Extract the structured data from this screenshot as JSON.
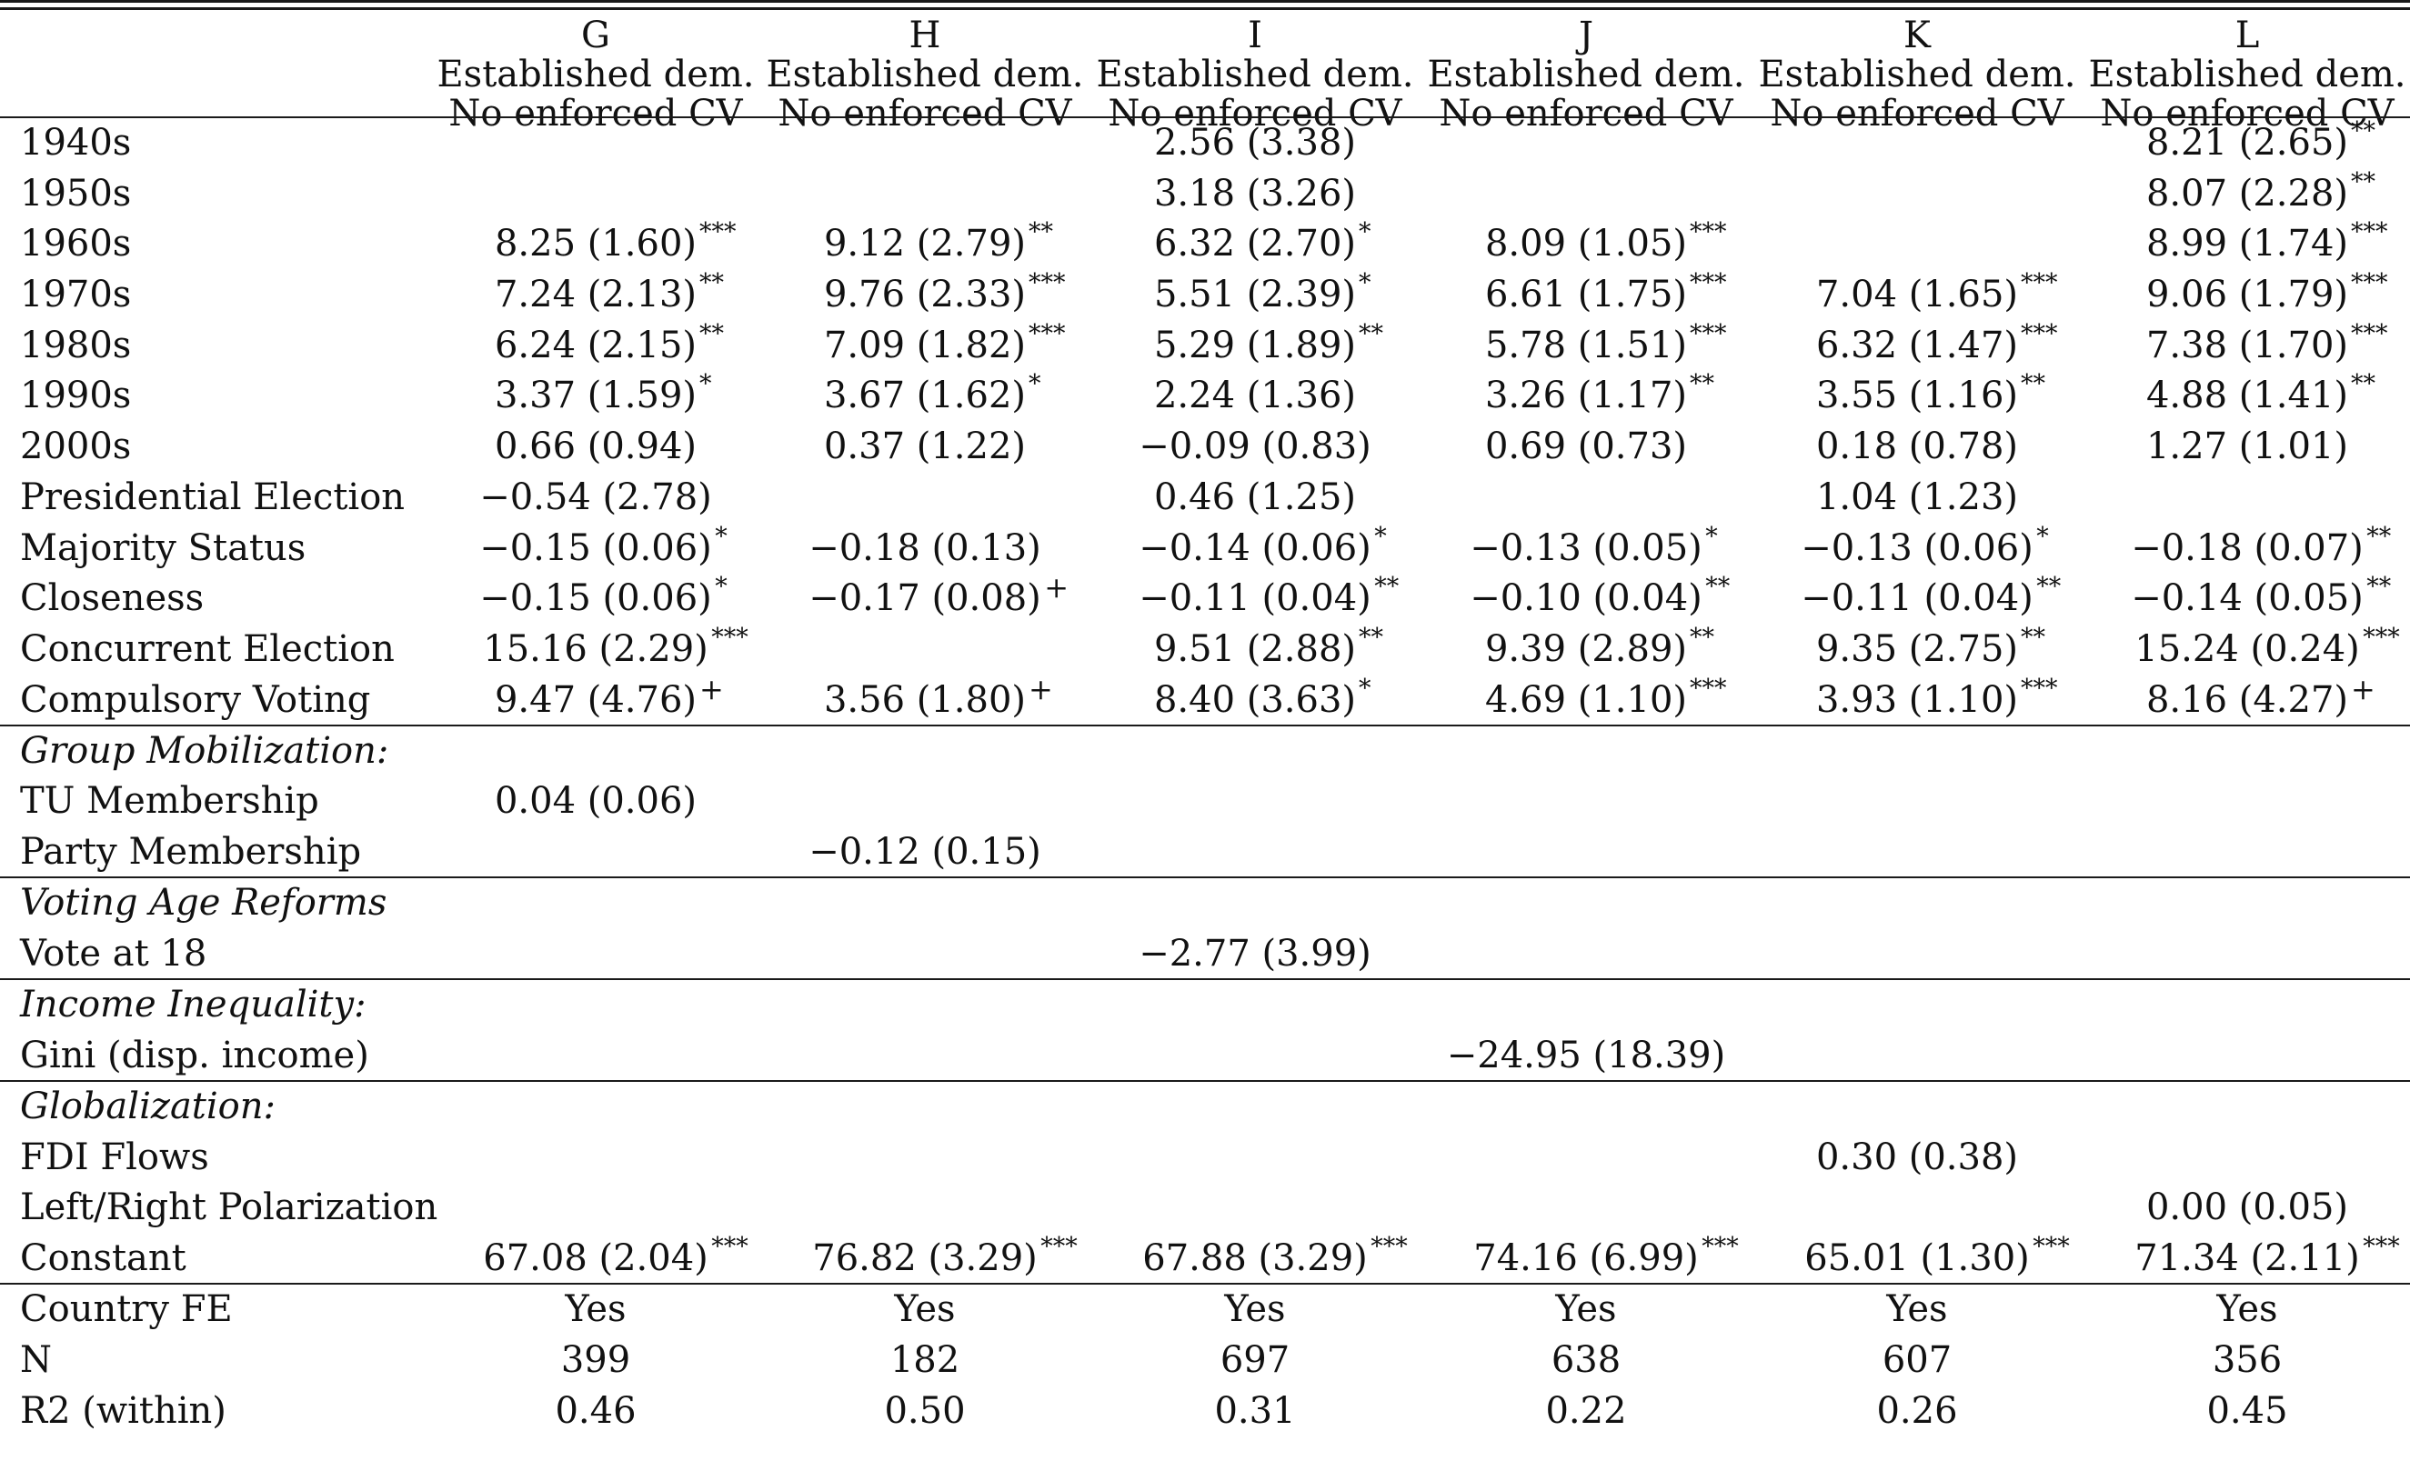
{
  "columns": [
    {
      "letter": "G",
      "line1": "Established dem.",
      "line2": "No enforced CV"
    },
    {
      "letter": "H",
      "line1": "Established dem.",
      "line2": "No enforced CV"
    },
    {
      "letter": "I",
      "line1": "Established dem.",
      "line2": "No enforced CV"
    },
    {
      "letter": "J",
      "line1": "Established dem.",
      "line2": "No enforced CV"
    },
    {
      "letter": "K",
      "line1": "Established dem.",
      "line2": "No enforced CV"
    },
    {
      "letter": "L",
      "line1": "Established dem.",
      "line2": "No enforced CV"
    }
  ],
  "rows": [
    {
      "label": "1940s",
      "cells": [
        null,
        null,
        {
          "v": "2.56 (3.38)",
          "s": ""
        },
        null,
        null,
        {
          "v": "8.21 (2.65)",
          "s": "**"
        }
      ]
    },
    {
      "label": "1950s",
      "cells": [
        null,
        null,
        {
          "v": "3.18 (3.26)",
          "s": ""
        },
        null,
        null,
        {
          "v": "8.07 (2.28)",
          "s": "**"
        }
      ]
    },
    {
      "label": "1960s",
      "cells": [
        {
          "v": "8.25 (1.60)",
          "s": "***"
        },
        {
          "v": "9.12 (2.79)",
          "s": "**"
        },
        {
          "v": "6.32 (2.70)",
          "s": "*"
        },
        {
          "v": "8.09 (1.05)",
          "s": "***"
        },
        null,
        {
          "v": "8.99 (1.74)",
          "s": "***"
        }
      ]
    },
    {
      "label": "1970s",
      "cells": [
        {
          "v": "7.24 (2.13)",
          "s": "**"
        },
        {
          "v": "9.76 (2.33)",
          "s": "***"
        },
        {
          "v": "5.51 (2.39)",
          "s": "*"
        },
        {
          "v": "6.61 (1.75)",
          "s": "***"
        },
        {
          "v": "7.04 (1.65)",
          "s": "***"
        },
        {
          "v": "9.06 (1.79)",
          "s": "***"
        }
      ]
    },
    {
      "label": "1980s",
      "cells": [
        {
          "v": "6.24 (2.15)",
          "s": "**"
        },
        {
          "v": "7.09 (1.82)",
          "s": "***"
        },
        {
          "v": "5.29 (1.89)",
          "s": "**"
        },
        {
          "v": "5.78 (1.51)",
          "s": "***"
        },
        {
          "v": "6.32 (1.47)",
          "s": "***"
        },
        {
          "v": "7.38 (1.70)",
          "s": "***"
        }
      ]
    },
    {
      "label": "1990s",
      "cells": [
        {
          "v": "3.37 (1.59)",
          "s": "*"
        },
        {
          "v": "3.67 (1.62)",
          "s": "*"
        },
        {
          "v": "2.24 (1.36)",
          "s": ""
        },
        {
          "v": "3.26 (1.17)",
          "s": "**"
        },
        {
          "v": "3.55 (1.16)",
          "s": "**"
        },
        {
          "v": "4.88 (1.41)",
          "s": "**"
        }
      ]
    },
    {
      "label": "2000s",
      "cells": [
        {
          "v": "0.66 (0.94)",
          "s": ""
        },
        {
          "v": "0.37 (1.22)",
          "s": ""
        },
        {
          "v": "−0.09 (0.83)",
          "s": ""
        },
        {
          "v": "0.69 (0.73)",
          "s": ""
        },
        {
          "v": "0.18 (0.78)",
          "s": ""
        },
        {
          "v": "1.27 (1.01)",
          "s": ""
        }
      ]
    },
    {
      "label": "Presidential Election",
      "cells": [
        {
          "v": "−0.54 (2.78)",
          "s": ""
        },
        null,
        {
          "v": "0.46 (1.25)",
          "s": ""
        },
        null,
        {
          "v": "1.04 (1.23)",
          "s": ""
        },
        null
      ]
    },
    {
      "label": "Majority Status",
      "cells": [
        {
          "v": "−0.15 (0.06)",
          "s": "*"
        },
        {
          "v": "−0.18 (0.13)",
          "s": ""
        },
        {
          "v": "−0.14 (0.06)",
          "s": "*"
        },
        {
          "v": "−0.13 (0.05)",
          "s": "*"
        },
        {
          "v": "−0.13 (0.06)",
          "s": "*"
        },
        {
          "v": "−0.18 (0.07)",
          "s": "**"
        }
      ]
    },
    {
      "label": "Closeness",
      "cells": [
        {
          "v": "−0.15 (0.06)",
          "s": "*"
        },
        {
          "v": "−0.17 (0.08)",
          "s": "+"
        },
        {
          "v": "−0.11 (0.04)",
          "s": "**"
        },
        {
          "v": "−0.10 (0.04)",
          "s": "**"
        },
        {
          "v": "−0.11 (0.04)",
          "s": "**"
        },
        {
          "v": "−0.14 (0.05)",
          "s": "**"
        }
      ]
    },
    {
      "label": "Concurrent Election",
      "cells": [
        {
          "v": "15.16 (2.29)",
          "s": "***"
        },
        null,
        {
          "v": "9.51 (2.88)",
          "s": "**"
        },
        {
          "v": "9.39 (2.89)",
          "s": "**"
        },
        {
          "v": "9.35 (2.75)",
          "s": "**"
        },
        {
          "v": "15.24 (0.24)",
          "s": "***"
        }
      ]
    },
    {
      "label": "Compulsory Voting",
      "cells": [
        {
          "v": "9.47 (4.76)",
          "s": "+"
        },
        {
          "v": "3.56 (1.80)",
          "s": "+"
        },
        {
          "v": "8.40 (3.63)",
          "s": "*"
        },
        {
          "v": "4.69 (1.10)",
          "s": "***"
        },
        {
          "v": "3.93 (1.10)",
          "s": "***"
        },
        {
          "v": "8.16 (4.27)",
          "s": "+"
        }
      ]
    },
    {
      "label": "Group Mobilization:",
      "section": true,
      "cells": [
        null,
        null,
        null,
        null,
        null,
        null
      ]
    },
    {
      "label": "TU Membership",
      "cells": [
        {
          "v": "0.04 (0.06)",
          "s": ""
        },
        null,
        null,
        null,
        null,
        null
      ]
    },
    {
      "label": "Party Membership",
      "cells": [
        null,
        {
          "v": "−0.12 (0.15)",
          "s": ""
        },
        null,
        null,
        null,
        null
      ]
    },
    {
      "label": "Voting Age Reforms",
      "section": true,
      "cells": [
        null,
        null,
        null,
        null,
        null,
        null
      ]
    },
    {
      "label": "Vote at 18",
      "cells": [
        null,
        null,
        {
          "v": "−2.77 (3.99)",
          "s": ""
        },
        null,
        null,
        null
      ]
    },
    {
      "label": "Income Inequality:",
      "section": true,
      "cells": [
        null,
        null,
        null,
        null,
        null,
        null
      ]
    },
    {
      "label": "Gini (disp. income)",
      "cells": [
        null,
        null,
        null,
        {
          "v": "−24.95 (18.39)",
          "s": ""
        },
        null,
        null
      ]
    },
    {
      "label": "Globalization:",
      "section": true,
      "cells": [
        null,
        null,
        null,
        null,
        null,
        null
      ]
    },
    {
      "label": "FDI Flows",
      "cells": [
        null,
        null,
        null,
        null,
        {
          "v": "0.30 (0.38)",
          "s": ""
        },
        null
      ]
    },
    {
      "label": "Left/Right Polarization",
      "cells": [
        null,
        null,
        null,
        null,
        null,
        {
          "v": "0.00 (0.05)",
          "s": ""
        }
      ]
    },
    {
      "label": "Constant",
      "cells": [
        {
          "v": "67.08 (2.04)",
          "s": "***"
        },
        {
          "v": "76.82 (3.29)",
          "s": "***"
        },
        {
          "v": "67.88 (3.29)",
          "s": "***"
        },
        {
          "v": "74.16 (6.99)",
          "s": "***"
        },
        {
          "v": "65.01 (1.30)",
          "s": "***"
        },
        {
          "v": "71.34 (2.11)",
          "s": "***"
        }
      ]
    },
    {
      "label": "Country FE",
      "cells": [
        {
          "v": "Yes",
          "s": ""
        },
        {
          "v": "Yes",
          "s": ""
        },
        {
          "v": "Yes",
          "s": ""
        },
        {
          "v": "Yes",
          "s": ""
        },
        {
          "v": "Yes",
          "s": ""
        },
        {
          "v": "Yes",
          "s": ""
        }
      ]
    },
    {
      "label": "N",
      "cells": [
        {
          "v": "399",
          "s": ""
        },
        {
          "v": "182",
          "s": ""
        },
        {
          "v": "697",
          "s": ""
        },
        {
          "v": "638",
          "s": ""
        },
        {
          "v": "607",
          "s": ""
        },
        {
          "v": "356",
          "s": ""
        }
      ]
    },
    {
      "label": "R2 (within)",
      "cells": [
        {
          "v": "0.46",
          "s": ""
        },
        {
          "v": "0.50",
          "s": ""
        },
        {
          "v": "0.31",
          "s": ""
        },
        {
          "v": "0.22",
          "s": ""
        },
        {
          "v": "0.26",
          "s": ""
        },
        {
          "v": "0.45",
          "s": ""
        }
      ]
    }
  ]
}
